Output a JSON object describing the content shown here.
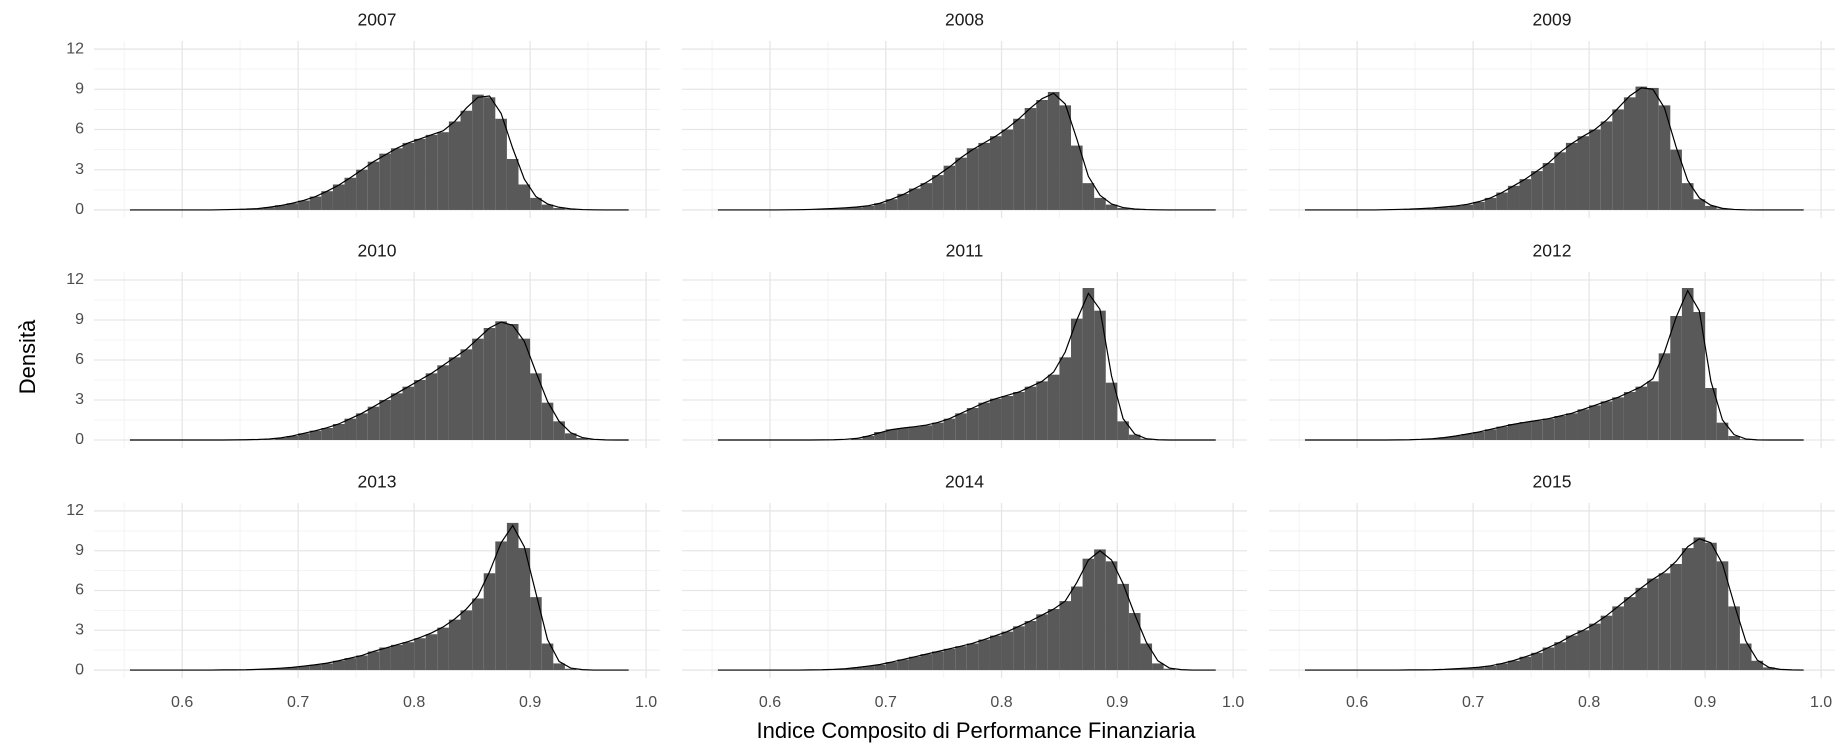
{
  "chart_data": {
    "type": "histogram",
    "x_label": "Indice Composito di Performance Finanziaria",
    "y_label": "Densità",
    "bar_color": "#595959",
    "line_color": "#000000",
    "grid": true,
    "xlim": [
      0.524,
      1.012
    ],
    "ylim": [
      -0.6,
      12.6
    ],
    "xticks": [
      0.6,
      0.7,
      0.8,
      0.9,
      {
        "value": 1,
        "label": "1.0"
      }
    ],
    "yticks": [
      0,
      3,
      6,
      9,
      12
    ],
    "x_minor_ticks": [
      0.55,
      0.65,
      0.75,
      0.85,
      0.95
    ],
    "y_minor_ticks": [
      1.5,
      4.5,
      7.5,
      10.5
    ],
    "bins": [
      0.55,
      0.56,
      0.57,
      0.58,
      0.59,
      0.6,
      0.61,
      0.62,
      0.63,
      0.64,
      0.65,
      0.66,
      0.67,
      0.68,
      0.69,
      0.7,
      0.71,
      0.72,
      0.73,
      0.74,
      0.75,
      0.76,
      0.77,
      0.78,
      0.79,
      0.8,
      0.81,
      0.82,
      0.83,
      0.84,
      0.85,
      0.86,
      0.87,
      0.88,
      0.89,
      0.9,
      0.91,
      0.92,
      0.93,
      0.94,
      0.95,
      0.96,
      0.97,
      0.98,
      0.99
    ],
    "density_x": [
      0.555,
      0.565,
      0.575,
      0.585,
      0.595,
      0.605,
      0.615,
      0.625,
      0.635,
      0.645,
      0.655,
      0.665,
      0.675,
      0.685,
      0.695,
      0.705,
      0.715,
      0.725,
      0.735,
      0.745,
      0.755,
      0.765,
      0.775,
      0.785,
      0.795,
      0.805,
      0.815,
      0.825,
      0.835,
      0.845,
      0.855,
      0.865,
      0.875,
      0.885,
      0.895,
      0.905,
      0.915,
      0.925,
      0.935,
      0.945,
      0.955,
      0.965,
      0.975,
      0.985
    ],
    "facets": [
      {
        "title": "2007",
        "counts": [
          0,
          0,
          0,
          0,
          0,
          0,
          0,
          0,
          0,
          0,
          0.05,
          0.1,
          0.2,
          0.35,
          0.5,
          0.7,
          1.0,
          1.4,
          1.9,
          2.4,
          3.0,
          3.6,
          4.2,
          4.6,
          5.0,
          5.3,
          5.6,
          5.8,
          6.6,
          7.4,
          8.6,
          8.4,
          6.8,
          3.8,
          1.9,
          0.9,
          0.4,
          0.15,
          0.05,
          0,
          0,
          0,
          0,
          0
        ],
        "density": [
          0,
          0,
          0,
          0,
          0,
          0,
          0,
          0,
          0.02,
          0.04,
          0.06,
          0.1,
          0.2,
          0.33,
          0.5,
          0.72,
          1.0,
          1.4,
          1.85,
          2.4,
          3.0,
          3.6,
          4.1,
          4.6,
          5.0,
          5.3,
          5.6,
          5.9,
          6.6,
          7.6,
          8.4,
          8.5,
          7.2,
          4.6,
          2.3,
          1.0,
          0.45,
          0.2,
          0.08,
          0.03,
          0.01,
          0,
          0,
          0
        ]
      },
      {
        "title": "2008",
        "counts": [
          0,
          0,
          0,
          0,
          0,
          0,
          0,
          0,
          0.02,
          0.05,
          0.1,
          0.15,
          0.2,
          0.3,
          0.5,
          0.8,
          1.2,
          1.6,
          2.0,
          2.6,
          3.3,
          3.9,
          4.6,
          5.0,
          5.5,
          6.0,
          6.8,
          7.6,
          8.2,
          8.8,
          7.8,
          4.8,
          2.0,
          0.9,
          0.4,
          0.15,
          0.05,
          0,
          0,
          0,
          0,
          0,
          0,
          0
        ],
        "density": [
          0,
          0,
          0,
          0,
          0,
          0,
          0.01,
          0.02,
          0.04,
          0.07,
          0.11,
          0.16,
          0.22,
          0.32,
          0.5,
          0.8,
          1.15,
          1.6,
          2.05,
          2.6,
          3.2,
          3.9,
          4.5,
          5.0,
          5.5,
          6.1,
          6.8,
          7.6,
          8.3,
          8.7,
          7.9,
          5.3,
          2.5,
          1.1,
          0.45,
          0.18,
          0.07,
          0.03,
          0.01,
          0,
          0,
          0,
          0,
          0
        ]
      },
      {
        "title": "2009",
        "counts": [
          0,
          0,
          0,
          0,
          0,
          0,
          0,
          0,
          0,
          0.05,
          0.1,
          0.15,
          0.2,
          0.3,
          0.4,
          0.6,
          0.9,
          1.3,
          1.8,
          2.3,
          2.9,
          3.5,
          4.3,
          5.0,
          5.5,
          6.0,
          6.6,
          7.5,
          8.4,
          9.2,
          9.1,
          7.8,
          4.5,
          2.0,
          0.8,
          0.3,
          0.1,
          0.03,
          0,
          0,
          0,
          0,
          0,
          0
        ],
        "density": [
          0,
          0,
          0,
          0,
          0,
          0,
          0,
          0.02,
          0.04,
          0.06,
          0.1,
          0.15,
          0.22,
          0.3,
          0.42,
          0.62,
          0.9,
          1.3,
          1.8,
          2.3,
          2.9,
          3.5,
          4.3,
          4.95,
          5.5,
          6.0,
          6.7,
          7.6,
          8.5,
          9.1,
          9.0,
          7.6,
          4.7,
          2.2,
          0.9,
          0.35,
          0.12,
          0.04,
          0.01,
          0,
          0,
          0,
          0,
          0
        ]
      },
      {
        "title": "2010",
        "counts": [
          0,
          0,
          0,
          0,
          0,
          0,
          0,
          0,
          0,
          0,
          0,
          0,
          0.05,
          0.15,
          0.3,
          0.5,
          0.7,
          0.9,
          1.2,
          1.6,
          2.0,
          2.5,
          3.0,
          3.5,
          4.0,
          4.5,
          5.0,
          5.6,
          6.2,
          6.8,
          7.6,
          8.4,
          8.9,
          8.7,
          7.6,
          5.0,
          2.8,
          1.4,
          0.5,
          0.15,
          0.05,
          0,
          0,
          0
        ],
        "density": [
          0,
          0,
          0,
          0,
          0,
          0,
          0,
          0,
          0,
          0.01,
          0.02,
          0.04,
          0.08,
          0.16,
          0.3,
          0.5,
          0.7,
          0.92,
          1.2,
          1.6,
          2.0,
          2.5,
          3.0,
          3.5,
          4.0,
          4.5,
          5.0,
          5.6,
          6.2,
          6.8,
          7.6,
          8.4,
          8.85,
          8.6,
          7.4,
          5.1,
          2.9,
          1.4,
          0.55,
          0.18,
          0.05,
          0.01,
          0,
          0
        ]
      },
      {
        "title": "2011",
        "counts": [
          0,
          0,
          0,
          0,
          0,
          0,
          0,
          0,
          0,
          0,
          0,
          0,
          0.1,
          0.3,
          0.6,
          0.8,
          0.9,
          1.0,
          1.1,
          1.3,
          1.6,
          2.0,
          2.4,
          2.8,
          3.1,
          3.3,
          3.6,
          4.0,
          4.4,
          4.9,
          6.2,
          9.1,
          11.4,
          9.7,
          4.3,
          1.4,
          0.4,
          0.1,
          0,
          0,
          0,
          0,
          0,
          0
        ],
        "density": [
          0,
          0,
          0,
          0,
          0,
          0,
          0,
          0,
          0,
          0.01,
          0.02,
          0.05,
          0.12,
          0.3,
          0.55,
          0.78,
          0.9,
          1.0,
          1.12,
          1.32,
          1.6,
          2.0,
          2.4,
          2.8,
          3.1,
          3.35,
          3.6,
          4.0,
          4.4,
          5.1,
          6.6,
          9.0,
          11.0,
          9.8,
          4.8,
          1.6,
          0.45,
          0.1,
          0.02,
          0,
          0,
          0,
          0,
          0
        ]
      },
      {
        "title": "2012",
        "counts": [
          0,
          0,
          0,
          0,
          0,
          0,
          0,
          0,
          0,
          0,
          0.05,
          0.1,
          0.2,
          0.3,
          0.45,
          0.6,
          0.8,
          1.0,
          1.2,
          1.35,
          1.45,
          1.6,
          1.8,
          2.0,
          2.3,
          2.6,
          2.9,
          3.2,
          3.6,
          4.0,
          4.4,
          6.5,
          9.3,
          11.4,
          9.6,
          3.9,
          1.3,
          0.3,
          0.05,
          0,
          0,
          0,
          0,
          0
        ],
        "density": [
          0,
          0,
          0,
          0,
          0,
          0,
          0,
          0,
          0.01,
          0.02,
          0.05,
          0.1,
          0.18,
          0.3,
          0.45,
          0.6,
          0.8,
          1.0,
          1.18,
          1.33,
          1.46,
          1.6,
          1.8,
          2.0,
          2.3,
          2.6,
          2.9,
          3.2,
          3.6,
          4.0,
          4.6,
          6.6,
          9.2,
          11.2,
          9.7,
          4.4,
          1.5,
          0.4,
          0.08,
          0.01,
          0,
          0,
          0,
          0
        ]
      },
      {
        "title": "2013",
        "counts": [
          0,
          0,
          0,
          0,
          0,
          0,
          0,
          0,
          0,
          0,
          0.02,
          0.05,
          0.1,
          0.15,
          0.2,
          0.3,
          0.4,
          0.5,
          0.7,
          0.9,
          1.1,
          1.4,
          1.7,
          1.9,
          2.1,
          2.4,
          2.7,
          3.2,
          3.8,
          4.5,
          5.4,
          7.3,
          9.7,
          11.1,
          9.2,
          5.5,
          2.0,
          0.5,
          0.1,
          0,
          0,
          0,
          0,
          0
        ],
        "density": [
          0,
          0,
          0,
          0,
          0,
          0,
          0,
          0,
          0.01,
          0.01,
          0.02,
          0.05,
          0.09,
          0.14,
          0.2,
          0.3,
          0.4,
          0.52,
          0.7,
          0.9,
          1.1,
          1.4,
          1.65,
          1.9,
          2.15,
          2.45,
          2.8,
          3.25,
          3.85,
          4.6,
          5.6,
          7.4,
          9.6,
          10.9,
          9.3,
          5.8,
          2.3,
          0.65,
          0.15,
          0.03,
          0,
          0,
          0,
          0
        ]
      },
      {
        "title": "2014",
        "counts": [
          0,
          0,
          0,
          0,
          0,
          0,
          0,
          0,
          0,
          0,
          0.05,
          0.1,
          0.2,
          0.3,
          0.4,
          0.6,
          0.8,
          1.0,
          1.2,
          1.4,
          1.6,
          1.8,
          2.0,
          2.3,
          2.6,
          2.9,
          3.3,
          3.7,
          4.2,
          4.6,
          5.2,
          6.3,
          8.4,
          9.1,
          8.2,
          6.5,
          4.3,
          2.0,
          0.5,
          0.1,
          0,
          0,
          0,
          0
        ],
        "density": [
          0,
          0,
          0,
          0,
          0,
          0,
          0,
          0,
          0.01,
          0.02,
          0.05,
          0.1,
          0.19,
          0.3,
          0.42,
          0.6,
          0.8,
          1.0,
          1.2,
          1.4,
          1.6,
          1.8,
          2.02,
          2.3,
          2.6,
          2.9,
          3.3,
          3.7,
          4.15,
          4.6,
          5.2,
          6.6,
          8.3,
          9.0,
          8.3,
          6.5,
          4.2,
          2.1,
          0.7,
          0.15,
          0.03,
          0,
          0,
          0
        ]
      },
      {
        "title": "2015",
        "counts": [
          0,
          0,
          0,
          0,
          0,
          0,
          0,
          0,
          0,
          0,
          0,
          0.02,
          0.05,
          0.1,
          0.15,
          0.2,
          0.3,
          0.5,
          0.7,
          1.0,
          1.3,
          1.7,
          2.1,
          2.6,
          3.0,
          3.5,
          4.1,
          4.8,
          5.5,
          6.2,
          6.9,
          7.3,
          8.0,
          9.2,
          10.0,
          9.6,
          8.2,
          4.8,
          2.0,
          0.7,
          0.2,
          0.05,
          0,
          0
        ],
        "density": [
          0,
          0,
          0,
          0,
          0,
          0,
          0,
          0,
          0,
          0.01,
          0.01,
          0.02,
          0.05,
          0.1,
          0.15,
          0.21,
          0.32,
          0.5,
          0.72,
          1.0,
          1.3,
          1.7,
          2.1,
          2.6,
          3.0,
          3.5,
          4.1,
          4.8,
          5.5,
          6.2,
          6.85,
          7.4,
          8.2,
          9.3,
          9.9,
          9.6,
          8.0,
          5.0,
          2.2,
          0.75,
          0.2,
          0.05,
          0.01,
          0
        ]
      }
    ]
  }
}
